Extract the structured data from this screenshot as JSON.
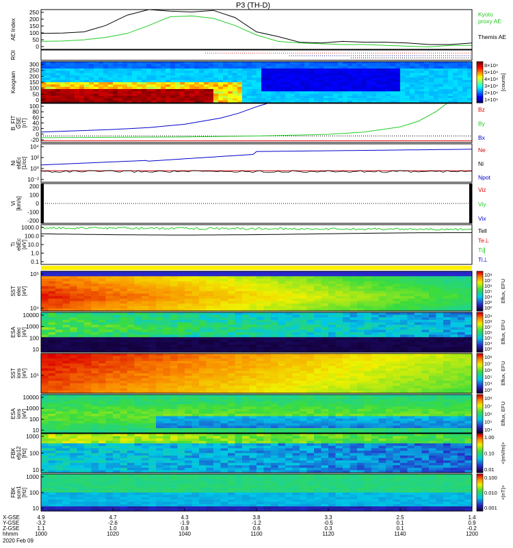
{
  "title": "P3 (TH-D)",
  "chart_data": {
    "type": "multi-panel time series / spectrogram",
    "date_label": "2020 Feb 09",
    "x_range": [
      "10:00",
      "12:00"
    ],
    "x_ephemeris": {
      "row_labels": [
        "X-GSE",
        "Y-GSE",
        "Z-GSE",
        "hhmm"
      ],
      "columns": [
        {
          "values": [
            "4.9",
            "-3.2",
            "1.1",
            "1000"
          ]
        },
        {
          "values": [
            "4.7",
            "-2.6",
            "1.0",
            "1020"
          ]
        },
        {
          "values": [
            "4.3",
            "-1.9",
            "0.8",
            "1040"
          ]
        },
        {
          "values": [
            "3.8",
            "-1.2",
            "0.6",
            "1100"
          ]
        },
        {
          "values": [
            "3.3",
            "-0.5",
            "0.3",
            "1120"
          ]
        },
        {
          "values": [
            "2.5",
            "0.1",
            "0.1",
            "1140"
          ]
        },
        {
          "values": [
            "1.4",
            "0.9",
            "-0.2",
            "1200"
          ]
        }
      ]
    },
    "panels": [
      {
        "id": "ae",
        "ylabel": "AE Index",
        "yticks": [
          "250",
          "200",
          "150",
          "100",
          "50",
          "0"
        ],
        "ylim": [
          0,
          250
        ],
        "legend": [
          {
            "label": "Kyoto",
            "color": "#22cc22"
          },
          {
            "label": "proxy AE",
            "color": "#22cc22"
          },
          {
            "label": "Themis AE",
            "color": "#000000"
          }
        ],
        "series": [
          {
            "color": "#000000",
            "t": [
              0,
              6,
              12,
              18,
              24,
              30,
              36,
              42,
              48,
              54,
              60,
              66,
              72,
              78,
              84,
              90,
              96,
              102,
              108,
              114,
              120
            ],
            "values": [
              100,
              102,
              110,
              150,
              215,
              250,
              240,
              235,
              245,
              200,
              110,
              80,
              45,
              40,
              50,
              45,
              45,
              40,
              30,
              30,
              40
            ]
          },
          {
            "color": "#22cc22",
            "t": [
              0,
              6,
              12,
              18,
              24,
              30,
              36,
              42,
              48,
              54,
              60,
              66,
              72,
              78,
              84,
              90,
              96,
              102,
              108,
              114,
              120
            ],
            "values": [
              50,
              52,
              60,
              75,
              100,
              150,
              205,
              210,
              195,
              150,
              90,
              50,
              40,
              35,
              30,
              30,
              25,
              20,
              15,
              25,
              25
            ]
          }
        ]
      },
      {
        "id": "roi",
        "ylabel": "ROI"
      },
      {
        "id": "keogram",
        "ylabel": "Keogram",
        "yticks": [
          "300",
          "250",
          "200",
          "150",
          "100",
          "50",
          "0"
        ],
        "ylim": [
          0,
          300
        ],
        "colorbar_ticks": [
          "8×10⁴",
          "5×10⁴",
          "4×10⁴",
          "3×10⁴",
          "2×10⁴",
          "1×10⁴"
        ],
        "colorbar_label": "[counts]"
      },
      {
        "id": "bfit",
        "ylabel": "B_FIT",
        "ylabel2": "GSE",
        "ylabel3": "[nT]",
        "yticks": [
          "100",
          "80",
          "60",
          "40",
          "20",
          "0",
          "-20"
        ],
        "ylim": [
          -20,
          100
        ],
        "legend": [
          {
            "label": "Bz",
            "color": "#dd0000"
          },
          {
            "label": "By",
            "color": "#22cc22"
          },
          {
            "label": "Bx",
            "color": "#0000cc"
          }
        ],
        "series": [
          {
            "color": "#0000cc",
            "t": [
              0,
              10,
              20,
              30,
              40,
              50,
              55,
              60,
              63
            ],
            "values": [
              12,
              16,
              20,
              26,
              36,
              55,
              70,
              90,
              100
            ]
          },
          {
            "color": "#22cc22",
            "t": [
              0,
              20,
              40,
              60,
              80,
              90,
              100,
              105,
              110,
              113
            ],
            "values": [
              -5,
              -4,
              -3,
              0,
              5,
              12,
              28,
              45,
              75,
              100
            ]
          },
          {
            "color": "#dd0000",
            "t": [
              0,
              120
            ],
            "values": [
              -15,
              -15
            ]
          }
        ]
      },
      {
        "id": "ni",
        "ylabel": "Ni",
        "ylabel2": "ebEc",
        "ylabel3": "[1/cc]",
        "yticks": [
          "10⁴",
          "10²",
          "10⁰",
          "10⁻²"
        ],
        "legend": [
          {
            "label": "Ne",
            "color": "#dd0000"
          },
          {
            "label": "Ni",
            "color": "#000000"
          },
          {
            "label": "Npot",
            "color": "#0000cc"
          }
        ]
      },
      {
        "id": "vi",
        "ylabel": "Vi",
        "ylabel3": "[km/s]",
        "yticks": [
          "200",
          "100",
          "0",
          "-100",
          "-200"
        ],
        "ylim": [
          -250,
          250
        ],
        "legend": [
          {
            "label": "Viz",
            "color": "#dd0000"
          },
          {
            "label": "Viy",
            "color": "#22cc22"
          },
          {
            "label": "Vix",
            "color": "#0000cc"
          }
        ]
      },
      {
        "id": "ti",
        "ylabel": "Ti",
        "ylabel2": "ebEc",
        "ylabel3": "[eV]",
        "yticks": [
          "1000.0",
          "100.0",
          "10.0",
          "1.0",
          "0.1"
        ],
        "legend": [
          {
            "label": "Tell",
            "color": "#000000"
          },
          {
            "label": "Te⊥",
            "color": "#dd0000"
          },
          {
            "label": "Ti∥",
            "color": "#22cc22"
          },
          {
            "label": "Ti⊥",
            "color": "#0000cc"
          }
        ]
      },
      {
        "id": "sst_e",
        "ylabel": "SST",
        "ylabel2": "elec",
        "ylabel3": "[eV]",
        "yticks": [
          "10⁵",
          "10⁴"
        ],
        "colorbar_ticks": [
          "10⁸",
          "10⁷",
          "10⁶",
          "10⁵",
          "10⁴",
          "10³",
          "10²"
        ],
        "colorbar_label": "Eflux, EFU"
      },
      {
        "id": "esa_e",
        "ylabel": "ESA",
        "ylabel2": "elec",
        "ylabel3": "[eV]",
        "yticks": [
          "10000",
          "1000",
          "100",
          "10"
        ],
        "colorbar_ticks": [
          "10⁹",
          "10⁸",
          "10⁷",
          "10⁶",
          "10⁵",
          "10⁴",
          "10³"
        ],
        "colorbar_label": "Eflux, EFU"
      },
      {
        "id": "sst_i",
        "ylabel": "SST",
        "ylabel2": "ions",
        "ylabel3": "[eV]",
        "yticks": [
          "10⁵"
        ],
        "colorbar_ticks": [
          "10⁸",
          "10⁷",
          "10⁶",
          "10⁵",
          "10⁴",
          "10³"
        ],
        "colorbar_label": "Eflux, EFU"
      },
      {
        "id": "esa_i",
        "ylabel": "ESA",
        "ylabel2": "ions",
        "ylabel3": "[eV]",
        "yticks": [
          "10000",
          "1000",
          "100",
          "10"
        ],
        "colorbar_ticks": [
          "10⁸",
          "10⁷",
          "10⁶",
          "10⁵",
          "10⁴"
        ],
        "colorbar_label": "Eflux, EFU"
      },
      {
        "id": "fbk_e",
        "ylabel": "FBK",
        "ylabel2": "efp12",
        "ylabel3": "[Hz]",
        "yticks": [
          "1000",
          "100",
          "10"
        ],
        "colorbar_ticks": [
          "1.00",
          "0.10",
          "0.01"
        ],
        "colorbar_label": "<|mV/m|>"
      },
      {
        "id": "fbk_b",
        "ylabel": "FBK",
        "ylabel2": "scm1",
        "ylabel3": "[Hz]",
        "yticks": [
          "1000",
          "100",
          "10"
        ],
        "colorbar_ticks": [
          "0.100",
          "0.010",
          "0.001"
        ],
        "colorbar_label": "<|nT|>"
      }
    ]
  }
}
